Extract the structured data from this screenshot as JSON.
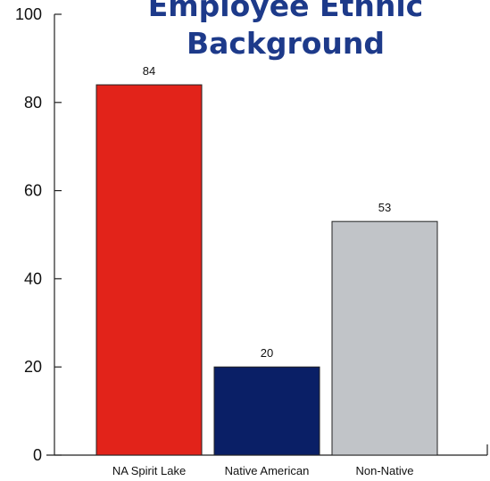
{
  "chart_data": {
    "type": "bar",
    "title_lines": [
      "Employee Ethnic",
      "Background"
    ],
    "xlabel": "",
    "ylabel": "",
    "categories": [
      "NA Spirit Lake",
      "Native American",
      "Non-Native"
    ],
    "values": [
      84,
      20,
      53
    ],
    "data_labels": [
      "84",
      "20",
      "53"
    ],
    "colors": [
      "#e2231a",
      "#0a1f66",
      "#c1c4c8"
    ],
    "ylim": [
      0,
      100
    ],
    "yticks": [
      0,
      20,
      40,
      60,
      80,
      100
    ],
    "ytick_labels": [
      "0",
      "20",
      "40",
      "60",
      "80",
      "100"
    ],
    "grid": false,
    "legend": "none"
  }
}
